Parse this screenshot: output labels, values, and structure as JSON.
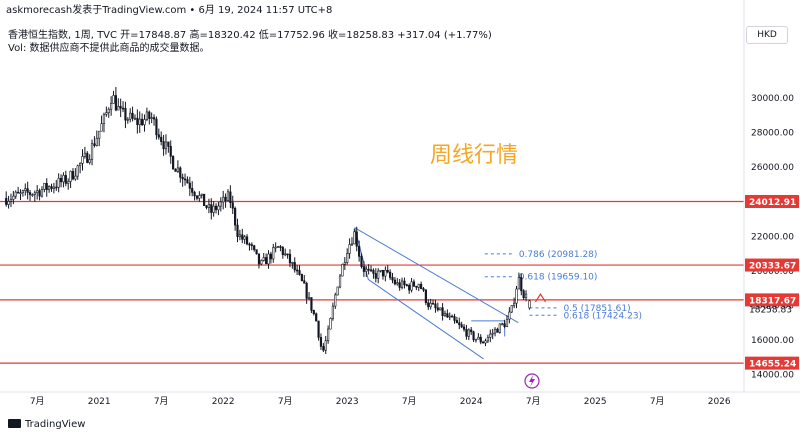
{
  "header": {
    "source": "askmorecash发表于TradingView.com • 6月 19, 2024 11:57 UTC+8"
  },
  "legend": {
    "line1": "香港恒生指数, 1周, TVC  开=17848.87  高=18320.42  低=17752.96  收=18258.83  +317.04 (+1.77%)",
    "line2": "Vol: 数据供应商不提供此商品的成交量数据。"
  },
  "currency": "HKD",
  "footer": {
    "logo_text": "TradingView"
  },
  "colors": {
    "up": "#131722",
    "down": "#131722",
    "level_line": "#e53935",
    "channel": "#4a7bd8",
    "fib": "#4a7bd8",
    "note": "#f5a623",
    "accent": "#9c27b0"
  },
  "chart_data": {
    "type": "candlestick",
    "annotation": "周线行情",
    "y_axis": {
      "range": [
        13100,
        32900
      ],
      "ticks": [
        14000,
        16000,
        18000,
        20000,
        22000,
        24000,
        26000,
        28000,
        30000
      ],
      "tick_labels": [
        "14000.00",
        "16000.00",
        "18000.00",
        "20000.00",
        "22000.00",
        "24000.00",
        "26000.00",
        "28000.00",
        "30000.00"
      ]
    },
    "x_axis": {
      "labels": [
        {
          "t": 2020.5,
          "text": "7月"
        },
        {
          "t": 2021.0,
          "text": "2021"
        },
        {
          "t": 2021.5,
          "text": "7月"
        },
        {
          "t": 2022.0,
          "text": "2022"
        },
        {
          "t": 2022.5,
          "text": "7月"
        },
        {
          "t": 2023.0,
          "text": "2023"
        },
        {
          "t": 2023.5,
          "text": "7月"
        },
        {
          "t": 2024.0,
          "text": "2024"
        },
        {
          "t": 2024.5,
          "text": "7月"
        },
        {
          "t": 2025.0,
          "text": "2025"
        },
        {
          "t": 2025.5,
          "text": "7月"
        },
        {
          "t": 2026.0,
          "text": "2026"
        }
      ],
      "range": [
        2020.2,
        2026.2
      ]
    },
    "horizontal_levels": [
      {
        "value": 24012.91,
        "label": "24012.91"
      },
      {
        "value": 20333.67,
        "label": "20333.67"
      },
      {
        "value": 18317.67,
        "label": "18317.67"
      },
      {
        "value": 14655.24,
        "label": "14655.24"
      }
    ],
    "last_price": {
      "value": 18258.83,
      "label": "18258.83"
    },
    "fib_levels": [
      {
        "value": 20981.28,
        "text": "0.786 (20981.28)"
      },
      {
        "value": 19659.1,
        "text": "0.618 (19659.10)"
      },
      {
        "value": 17851.61,
        "text": "0.5 (17851.61)"
      },
      {
        "value": 17424.23,
        "text": "0.618 (17424.23)"
      }
    ],
    "trend_anchors": [
      [
        2020.25,
        24200
      ],
      [
        2020.5,
        24600
      ],
      [
        2020.75,
        25300
      ],
      [
        2020.92,
        26800
      ],
      [
        2021.05,
        28900
      ],
      [
        2021.1,
        30200
      ],
      [
        2021.17,
        29100
      ],
      [
        2021.3,
        28600
      ],
      [
        2021.42,
        28900
      ],
      [
        2021.5,
        27700
      ],
      [
        2021.6,
        26200
      ],
      [
        2021.75,
        24800
      ],
      [
        2021.9,
        23400
      ],
      [
        2021.97,
        23800
      ],
      [
        2022.05,
        24300
      ],
      [
        2022.12,
        22100
      ],
      [
        2022.22,
        21400
      ],
      [
        2022.3,
        20300
      ],
      [
        2022.45,
        21400
      ],
      [
        2022.55,
        20400
      ],
      [
        2022.65,
        19100
      ],
      [
        2022.75,
        17100
      ],
      [
        2022.8,
        15200
      ],
      [
        2022.85,
        16500
      ],
      [
        2022.92,
        19200
      ],
      [
        2023.0,
        21300
      ],
      [
        2023.06,
        22200
      ],
      [
        2023.12,
        20200
      ],
      [
        2023.2,
        19700
      ],
      [
        2023.3,
        19900
      ],
      [
        2023.4,
        19200
      ],
      [
        2023.5,
        19100
      ],
      [
        2023.58,
        19300
      ],
      [
        2023.65,
        18100
      ],
      [
        2023.75,
        17600
      ],
      [
        2023.85,
        17100
      ],
      [
        2023.95,
        16500
      ],
      [
        2024.03,
        16100
      ],
      [
        2024.1,
        15900
      ],
      [
        2024.2,
        16600
      ],
      [
        2024.28,
        17000
      ],
      [
        2024.33,
        17800
      ],
      [
        2024.38,
        19600
      ],
      [
        2024.42,
        18700
      ],
      [
        2024.47,
        18258
      ]
    ],
    "last_candle": {
      "open": 17848.87,
      "high": 18320.42,
      "low": 17752.96,
      "close": 18258.83
    }
  }
}
